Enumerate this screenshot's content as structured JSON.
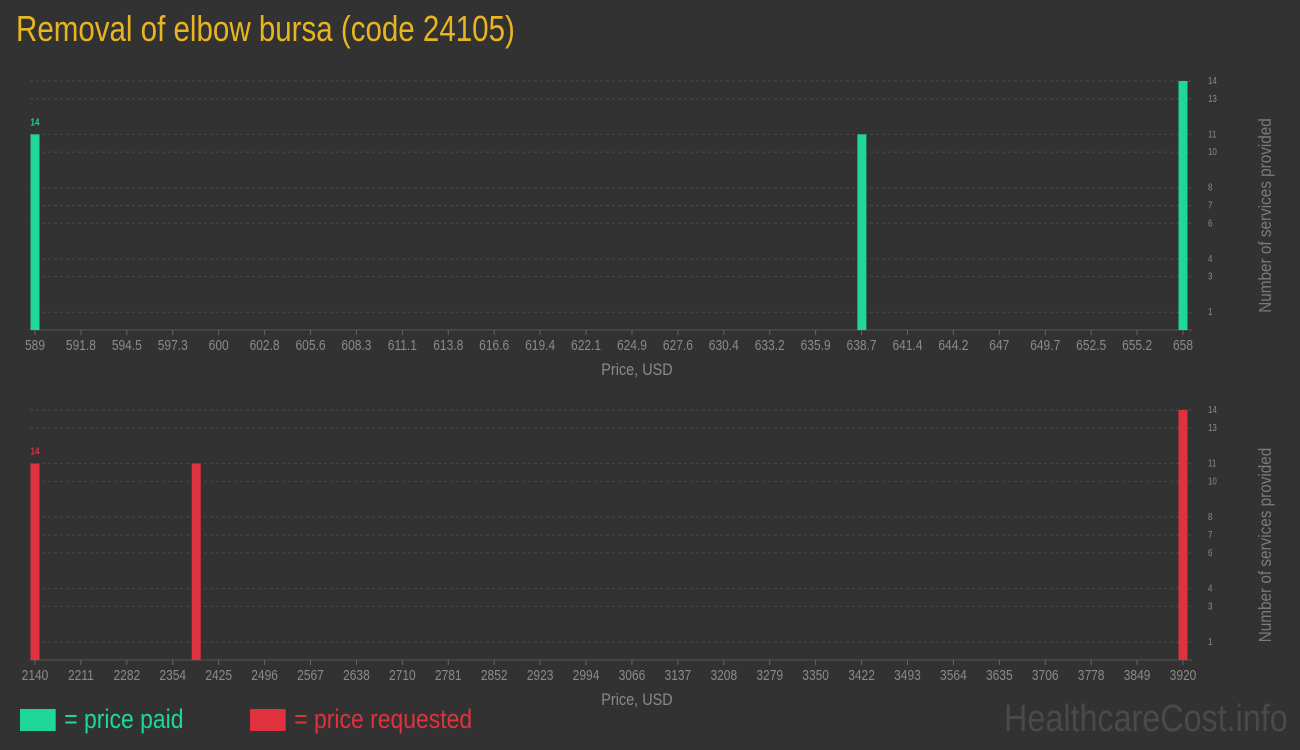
{
  "title": "Removal of elbow bursa (code 24105)",
  "colors": {
    "paid": "#1fd796",
    "requested": "#e0313f",
    "title": "#e8b520",
    "background": "#323232"
  },
  "legend": {
    "paid": "= price paid",
    "requested": "= price requested"
  },
  "watermark": "HealthcareCost.info",
  "chart_data": [
    {
      "type": "bar",
      "series_key": "paid",
      "xlabel": "Price, USD",
      "ylabel": "Number of services provided",
      "xlim": [
        589,
        658
      ],
      "ylim": [
        0,
        14
      ],
      "x_ticks": [
        "589",
        "591.8",
        "594.5",
        "597.3",
        "600",
        "602.8",
        "605.6",
        "608.3",
        "611.1",
        "613.8",
        "616.6",
        "619.4",
        "622.1",
        "624.9",
        "627.6",
        "630.4",
        "633.2",
        "635.9",
        "638.7",
        "641.4",
        "644.2",
        "647",
        "649.7",
        "652.5",
        "655.2",
        "658"
      ],
      "y_ticks": [
        1,
        3,
        4,
        6,
        7,
        8,
        10,
        11,
        13,
        14
      ],
      "grid": true,
      "bars": [
        {
          "x": 589,
          "y": 11
        },
        {
          "x": 638.7,
          "y": 11
        },
        {
          "x": 658,
          "y": 14
        }
      ],
      "max_label": "14"
    },
    {
      "type": "bar",
      "series_key": "requested",
      "xlabel": "Price, USD",
      "ylabel": "Number of services provided",
      "xlim": [
        2140,
        3920
      ],
      "ylim": [
        0,
        14
      ],
      "x_ticks": [
        "2140",
        "2211",
        "2282",
        "2354",
        "2425",
        "2496",
        "2567",
        "2638",
        "2710",
        "2781",
        "2852",
        "2923",
        "2994",
        "3066",
        "3137",
        "3208",
        "3279",
        "3350",
        "3422",
        "3493",
        "3564",
        "3635",
        "3706",
        "3778",
        "3849",
        "3920"
      ],
      "y_ticks": [
        1,
        3,
        4,
        6,
        7,
        8,
        10,
        11,
        13,
        14
      ],
      "grid": true,
      "bars": [
        {
          "x": 2140,
          "y": 11
        },
        {
          "x": 2390,
          "y": 11
        },
        {
          "x": 3920,
          "y": 14
        }
      ],
      "max_label": "14"
    }
  ]
}
